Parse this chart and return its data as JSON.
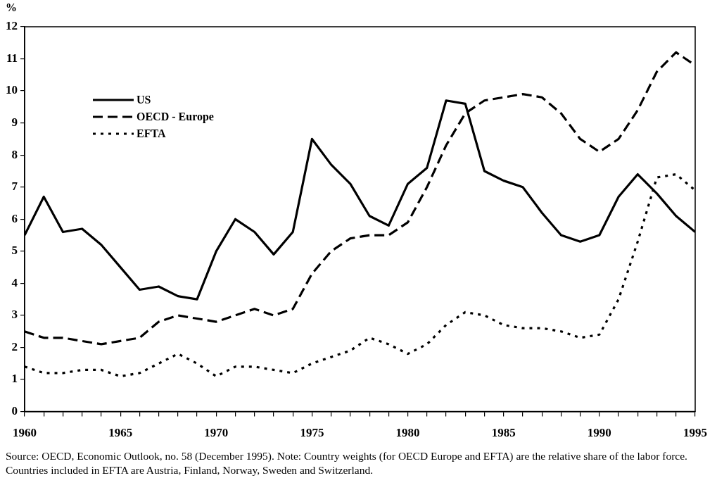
{
  "chart_data": {
    "type": "line",
    "ylabel": "%",
    "x": [
      1960,
      1961,
      1962,
      1963,
      1964,
      1965,
      1966,
      1967,
      1968,
      1969,
      1970,
      1971,
      1972,
      1973,
      1974,
      1975,
      1976,
      1977,
      1978,
      1979,
      1980,
      1981,
      1982,
      1983,
      1984,
      1985,
      1986,
      1987,
      1988,
      1989,
      1990,
      1991,
      1992,
      1993,
      1994,
      1995
    ],
    "series": [
      {
        "name": "US",
        "color": "#000000",
        "line_style": "solid",
        "values": [
          5.5,
          6.7,
          5.6,
          5.7,
          5.2,
          4.5,
          3.8,
          3.9,
          3.6,
          3.5,
          5.0,
          6.0,
          5.6,
          4.9,
          5.6,
          8.5,
          7.7,
          7.1,
          6.1,
          5.8,
          7.1,
          7.6,
          9.7,
          9.6,
          7.5,
          7.2,
          7.0,
          6.2,
          5.5,
          5.3,
          5.5,
          6.7,
          7.4,
          6.8,
          6.1,
          5.6
        ]
      },
      {
        "name": "OECD - Europe",
        "color": "#000000",
        "line_style": "dashed",
        "values": [
          2.5,
          2.3,
          2.3,
          2.2,
          2.1,
          2.2,
          2.3,
          2.8,
          3.0,
          2.9,
          2.8,
          3.0,
          3.2,
          3.0,
          3.2,
          4.3,
          5.0,
          5.4,
          5.5,
          5.5,
          5.9,
          7.0,
          8.3,
          9.3,
          9.7,
          9.8,
          9.9,
          9.8,
          9.3,
          8.5,
          8.1,
          8.5,
          9.4,
          10.6,
          11.2,
          10.8
        ]
      },
      {
        "name": "EFTA",
        "color": "#000000",
        "line_style": "dotted",
        "values": [
          1.4,
          1.2,
          1.2,
          1.3,
          1.3,
          1.1,
          1.2,
          1.5,
          1.8,
          1.5,
          1.1,
          1.4,
          1.4,
          1.3,
          1.2,
          1.5,
          1.7,
          1.9,
          2.3,
          2.1,
          1.8,
          2.1,
          2.7,
          3.1,
          3.0,
          2.7,
          2.6,
          2.6,
          2.5,
          2.3,
          2.4,
          3.5,
          5.3,
          7.3,
          7.4,
          6.9
        ]
      }
    ],
    "xlim": [
      1960,
      1995
    ],
    "xticks": [
      1960,
      {
        "value": 1961,
        "label": null
      },
      {
        "value": 1962,
        "label": null
      },
      {
        "value": 1963,
        "label": null
      },
      {
        "value": 1964,
        "label": null
      },
      1965,
      {
        "value": 1966,
        "label": null
      },
      {
        "value": 1967,
        "label": null
      },
      {
        "value": 1968,
        "label": null
      },
      {
        "value": 1969,
        "label": null
      },
      1970,
      {
        "value": 1971,
        "label": null
      },
      {
        "value": 1972,
        "label": null
      },
      {
        "value": 1973,
        "label": null
      },
      {
        "value": 1974,
        "label": null
      },
      1975,
      {
        "value": 1976,
        "label": null
      },
      {
        "value": 1977,
        "label": null
      },
      {
        "value": 1978,
        "label": null
      },
      {
        "value": 1979,
        "label": null
      },
      1980,
      {
        "value": 1981,
        "label": null
      },
      {
        "value": 1982,
        "label": null
      },
      {
        "value": 1983,
        "label": null
      },
      {
        "value": 1984,
        "label": null
      },
      1985,
      {
        "value": 1986,
        "label": null
      },
      {
        "value": 1987,
        "label": null
      },
      {
        "value": 1988,
        "label": null
      },
      {
        "value": 1989,
        "label": null
      },
      1990,
      {
        "value": 1991,
        "label": null
      },
      {
        "value": 1992,
        "label": null
      },
      {
        "value": 1993,
        "label": null
      },
      {
        "value": 1994,
        "label": null
      },
      1995
    ],
    "ylim": [
      0,
      12
    ],
    "yticks": [
      0,
      1,
      2,
      3,
      4,
      5,
      6,
      7,
      8,
      9,
      10,
      11,
      12
    ],
    "legend": "top left",
    "marker": "none",
    "annotations": [
      "Source: OECD, Economic Outlook, no. 58 (December 1995). Note: Country weights (for OECD Europe and EFTA) are the relative share of the labor force. Countries included in EFTA are Austria, Finland, Norway, Sweden and Switzerland."
    ]
  }
}
